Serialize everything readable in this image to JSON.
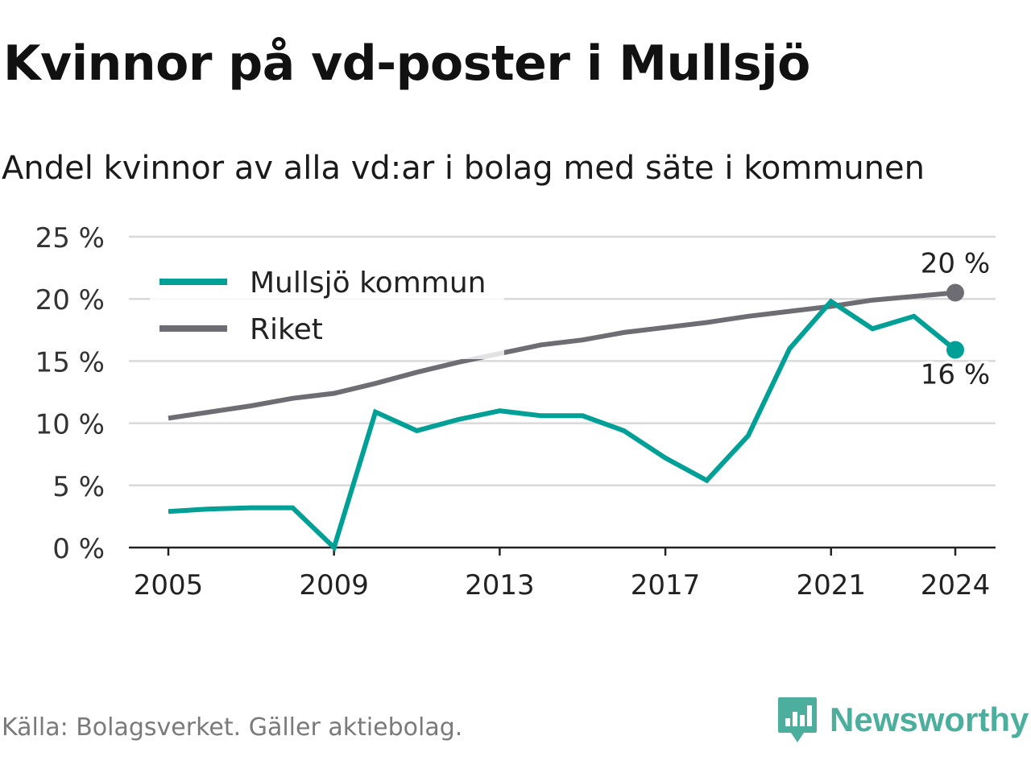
{
  "title": "Kvinnor på vd-poster i Mullsjö",
  "subtitle": "Andel kvinnor av alla vd:ar i bolag med säte i kommunen",
  "source": "Källa: Bolagsverket. Gäller aktiebolag.",
  "brand": {
    "name": "Newsworthy",
    "icon": "newsworthy-logo-icon",
    "color": "#4cae9c"
  },
  "chart_data": {
    "type": "line",
    "x": [
      2005,
      2006,
      2007,
      2008,
      2009,
      2010,
      2011,
      2012,
      2013,
      2014,
      2015,
      2016,
      2017,
      2018,
      2019,
      2020,
      2021,
      2022,
      2023,
      2024
    ],
    "x_ticks": [
      "2005",
      "2009",
      "2013",
      "2017",
      "2021",
      "2024"
    ],
    "y_ticks": [
      "0 %",
      "5 %",
      "10 %",
      "15 %",
      "20 %",
      "25 %"
    ],
    "ylim": [
      0,
      25
    ],
    "grid": true,
    "legend_position": "top-left",
    "series": [
      {
        "name": "Mullsjö kommun",
        "color": "#00a096",
        "values": [
          2.9,
          3.1,
          3.2,
          3.2,
          0.0,
          10.9,
          9.4,
          10.3,
          11.0,
          10.6,
          10.6,
          9.4,
          7.2,
          5.4,
          9.0,
          16.0,
          19.8,
          17.6,
          18.6,
          15.9
        ],
        "end_label": "16 %"
      },
      {
        "name": "Riket",
        "color": "#6e6d74",
        "values": [
          10.4,
          10.9,
          11.4,
          12.0,
          12.4,
          13.2,
          14.1,
          14.9,
          15.6,
          16.3,
          16.7,
          17.3,
          17.7,
          18.1,
          18.6,
          19.0,
          19.4,
          19.9,
          20.2,
          20.5
        ],
        "end_label": "20 %"
      }
    ]
  }
}
